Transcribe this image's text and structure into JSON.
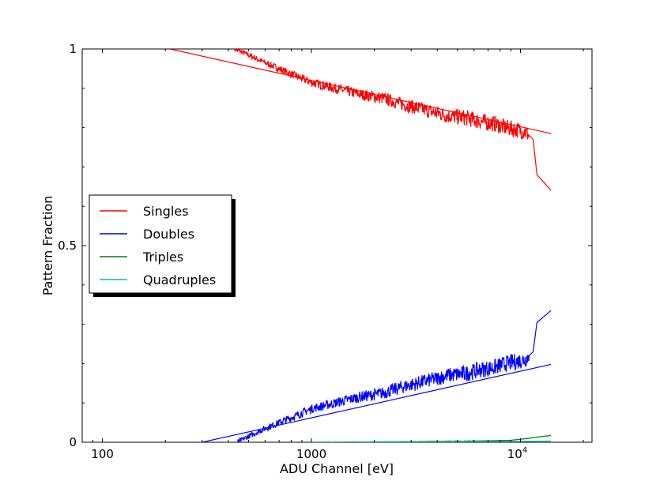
{
  "chart_data": {
    "type": "line",
    "xscale": "log",
    "title": "",
    "xlabel": "ADU Channel [eV]",
    "ylabel": "Pattern Fraction",
    "xlim": [
      80,
      22000
    ],
    "ylim": [
      0,
      1
    ],
    "x_ticks": [
      {
        "value": 100,
        "label": "100"
      },
      {
        "value": 1000,
        "label": "1000"
      },
      {
        "value": 10000,
        "label": "10",
        "exp": "4"
      }
    ],
    "y_ticks": [
      {
        "value": 0,
        "label": "0"
      },
      {
        "value": 0.5,
        "label": "0.5"
      },
      {
        "value": 1,
        "label": "1"
      }
    ],
    "legend": {
      "placement": "center-left",
      "entries": [
        {
          "label": "Singles",
          "color": "#ff0000"
        },
        {
          "label": "Doubles",
          "color": "#0000ff"
        },
        {
          "label": "Triples",
          "color": "#008000"
        },
        {
          "label": "Quadruples",
          "color": "#00bfbf"
        }
      ]
    },
    "series": [
      {
        "name": "Singles (measured)",
        "color": "#ff0000",
        "noise": 0.035,
        "noise_start": 3000,
        "noise_end": 0.012,
        "x": [
          430,
          500,
          600,
          700,
          850,
          1000,
          1300,
          1700,
          2200,
          2700,
          3500,
          4500,
          5500,
          6500,
          7500,
          8500,
          9500,
          10500,
          11000,
          11500,
          12000,
          13000,
          14000
        ],
        "y": [
          1.0,
          0.985,
          0.965,
          0.95,
          0.93,
          0.915,
          0.9,
          0.885,
          0.875,
          0.86,
          0.845,
          0.83,
          0.825,
          0.815,
          0.81,
          0.8,
          0.795,
          0.79,
          0.78,
          0.77,
          0.68,
          0.66,
          0.64
        ]
      },
      {
        "name": "Singles (model)",
        "color": "#ff0000",
        "x": [
          210,
          14000
        ],
        "y": [
          1.0,
          0.785
        ]
      },
      {
        "name": "Doubles (measured)",
        "color": "#0000ff",
        "noise": 0.035,
        "noise_start": 3000,
        "noise_end": 0.012,
        "x": [
          440,
          500,
          600,
          700,
          850,
          1000,
          1300,
          1700,
          2200,
          2700,
          3500,
          4500,
          5500,
          6500,
          7500,
          8500,
          9500,
          10500,
          11000,
          11500,
          12000,
          13000,
          14000
        ],
        "y": [
          0.0,
          0.015,
          0.035,
          0.05,
          0.068,
          0.085,
          0.1,
          0.115,
          0.125,
          0.14,
          0.155,
          0.17,
          0.175,
          0.185,
          0.19,
          0.2,
          0.205,
          0.21,
          0.22,
          0.23,
          0.305,
          0.32,
          0.335
        ]
      },
      {
        "name": "Doubles (model)",
        "color": "#0000ff",
        "x": [
          300,
          14000
        ],
        "y": [
          0.0,
          0.198
        ]
      },
      {
        "name": "Triples",
        "color": "#008000",
        "noise": 0.002,
        "noise_start": 3000,
        "noise_end": 0.001,
        "x": [
          1000,
          3000,
          6000,
          9000,
          11000,
          12000,
          14000
        ],
        "y": [
          0.0,
          0.001,
          0.003,
          0.005,
          0.01,
          0.013,
          0.017
        ]
      },
      {
        "name": "Quadruples",
        "color": "#00bfbf",
        "x": [
          1000,
          5000,
          10000,
          14000
        ],
        "y": [
          0.0,
          0.001,
          0.002,
          0.003
        ]
      }
    ]
  }
}
